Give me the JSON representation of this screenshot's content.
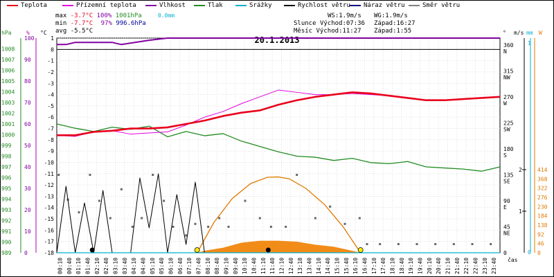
{
  "header": {
    "legend": [
      {
        "label": "Teplota",
        "color": "#e8001c"
      },
      {
        "label": "Přízemní teplota",
        "color": "#e000e0"
      },
      {
        "label": "Vlhkost",
        "color": "#8000a0"
      },
      {
        "label": "Tlak",
        "color": "#228b22"
      },
      {
        "label": "Srážky",
        "color": "#00b0d0"
      },
      {
        "label": "Rychlost větru",
        "color": "#000000"
      },
      {
        "label": "Náraz větru",
        "color": "#000080"
      },
      {
        "label": "Směr větru",
        "color": "#808080"
      }
    ],
    "stats": {
      "max_label": "max",
      "min_label": "min",
      "avg_label": "avg",
      "max_temp": "-3.7°C",
      "max_hum": "100%",
      "max_press": "1001hPa",
      "max_rain": "0.0mm",
      "min_temp": "-7.7°C",
      "min_hum": "97%",
      "min_press": "996.6hPa",
      "avg_temp": "-5.5°C",
      "ws": "WS:1.9m/s",
      "wg": "WG:1.9m/s",
      "sun_label": "Slunce",
      "sunrise": "Východ:07:36",
      "sunset": "Západ:16:27",
      "moon_label": "Měsíc",
      "moonrise": "Východ:11:27",
      "moonset": "Západ:1:55"
    }
  },
  "chart_data": {
    "type": "line",
    "title": "20.1.2013",
    "xlabel": "čas",
    "x_ticks": [
      "00:10",
      "00:40",
      "01:10",
      "01:40",
      "02:10",
      "02:40",
      "03:10",
      "03:40",
      "04:10",
      "04:40",
      "05:10",
      "05:40",
      "06:10",
      "06:40",
      "07:10",
      "07:40",
      "08:10",
      "08:40",
      "09:10",
      "09:40",
      "10:10",
      "10:40",
      "11:10",
      "11:40",
      "12:10",
      "12:40",
      "13:10",
      "13:40",
      "14:10",
      "14:40",
      "15:10",
      "15:40",
      "16:10",
      "16:40",
      "17:10",
      "17:40",
      "18:10",
      "18:40",
      "19:10",
      "19:40",
      "20:10",
      "20:40",
      "21:10",
      "21:40",
      "22:10",
      "22:40",
      "23:10",
      "23:40"
    ],
    "axes": {
      "pressure": {
        "unit": "hPa",
        "range": [
          989,
          1009
        ],
        "ticks": [
          989,
          990,
          991,
          992,
          993,
          994,
          995,
          996,
          997,
          998,
          999,
          1000,
          1001,
          1002,
          1003,
          1004,
          1005,
          1006,
          1007,
          1008
        ],
        "color": "#228b22"
      },
      "humidity": {
        "unit": "%",
        "range": [
          0,
          100
        ],
        "ticks": [
          0,
          10,
          20,
          30,
          40,
          50,
          60,
          70,
          80,
          90,
          100
        ],
        "color": "#8000a0"
      },
      "temperature": {
        "unit": "°C",
        "range": [
          -18,
          1
        ],
        "ticks": [
          1,
          0,
          -1,
          -2,
          -3,
          -4,
          -5,
          -6,
          -7,
          -8,
          -9,
          -10,
          -11,
          -12,
          -13,
          -14,
          -15,
          -16,
          -17,
          -18
        ]
      },
      "wind_dir": {
        "unit": "°",
        "ticks": [
          "360",
          "N",
          "315",
          "NW",
          "270",
          "W",
          "225",
          "SW",
          "180",
          "S",
          "135",
          "SE",
          "90",
          "E",
          "45",
          "NE",
          "0"
        ]
      },
      "wind_speed": {
        "unit": "m/s",
        "ticks": [
          1,
          2
        ],
        "color": "#000000"
      },
      "rain": {
        "unit": "mm",
        "ticks": [
          1,
          0
        ],
        "color": "#00b0d0"
      },
      "solar": {
        "unit": "W",
        "ticks": [
          414,
          368,
          322,
          276,
          230,
          184,
          138,
          92,
          46,
          0
        ],
        "color": "#e07800"
      }
    },
    "grid": true,
    "series": [
      {
        "name": "Teplota",
        "unit": "°C",
        "color": "#e8001c",
        "x": [
          0,
          1,
          2,
          3,
          4,
          5,
          6,
          7,
          8,
          9,
          10,
          11,
          12,
          13,
          14,
          15,
          16,
          17,
          18,
          19,
          20,
          21,
          22,
          23,
          24
        ],
        "values": [
          -7.6,
          -7.6,
          -7.3,
          -7.2,
          -7.0,
          -7.0,
          -6.9,
          -6.6,
          -6.3,
          -5.9,
          -5.6,
          -5.4,
          -4.9,
          -4.5,
          -4.2,
          -4.0,
          -3.8,
          -3.9,
          -4.1,
          -4.3,
          -4.5,
          -4.5,
          -4.4,
          -4.3,
          -4.2
        ]
      },
      {
        "name": "Přízemní teplota",
        "unit": "°C",
        "color": "#e000e0",
        "x": [
          0,
          1,
          2,
          3,
          4,
          5,
          6,
          7,
          8,
          9,
          10,
          11,
          12,
          13,
          14,
          15,
          16,
          17,
          18,
          19,
          20,
          21,
          22,
          23,
          24
        ],
        "values": [
          -7.6,
          -7.7,
          -7.3,
          -7.2,
          -7.5,
          -7.4,
          -7.3,
          -6.7,
          -6.0,
          -5.5,
          -4.8,
          -4.2,
          -3.6,
          -3.8,
          -4.0,
          -4.0,
          -3.9,
          -4.0,
          -4.1,
          -4.3,
          -4.5,
          -4.5,
          -4.4,
          -4.3,
          -4.2
        ]
      },
      {
        "name": "Vlhkost",
        "unit": "%",
        "color": "#8000a0",
        "x": [
          0,
          0.5,
          1.0,
          2.0,
          3.0,
          3.5,
          5.0,
          6.0,
          24
        ],
        "values": [
          97,
          97,
          98,
          98,
          98,
          97,
          99,
          100,
          100
        ]
      },
      {
        "name": "Tlak",
        "unit": "hPa",
        "color": "#228b22",
        "x": [
          0,
          1,
          2,
          3,
          4,
          5,
          6,
          7,
          8,
          9,
          10,
          11,
          12,
          13,
          14,
          15,
          16,
          17,
          18,
          19,
          20,
          21,
          22,
          23,
          24
        ],
        "values": [
          1001.0,
          1000.6,
          1000.3,
          1000.7,
          1000.5,
          1000.8,
          999.8,
          1000.3,
          999.9,
          1000.1,
          999.4,
          998.9,
          998.4,
          998.0,
          997.9,
          997.6,
          997.8,
          997.4,
          997.3,
          997.5,
          997.0,
          996.9,
          996.8,
          996.6,
          997.0
        ]
      },
      {
        "name": "Rychlost větru",
        "unit": "m/s",
        "color": "#000000",
        "x": [
          0,
          0.5,
          1.0,
          1.5,
          2.0,
          2.5,
          3.0,
          3.5,
          4.0,
          4.5,
          5.0,
          5.5,
          6.0,
          6.5,
          7.0,
          7.5,
          8.0,
          8.5,
          9.0,
          9.5,
          10,
          24
        ],
        "values": [
          0,
          1.6,
          0,
          1.2,
          0,
          1.5,
          0,
          0,
          0,
          1.8,
          0.6,
          1.9,
          0,
          1.4,
          0.2,
          1.7,
          0,
          0,
          0,
          0,
          0,
          0
        ]
      },
      {
        "name": "Srážky",
        "unit": "mm",
        "color": "#00b0d0",
        "x": [
          0,
          24
        ],
        "values": [
          0,
          0
        ]
      }
    ],
    "wind_direction": {
      "unit": "°",
      "x": [
        0.1,
        0.6,
        1.2,
        1.8,
        2.3,
        2.9,
        3.5,
        4.1,
        4.6,
        5.2,
        5.8,
        6.3,
        7.0,
        7.5,
        8.2,
        8.8,
        9.3,
        10.2,
        11.0,
        11.6,
        12.4,
        13.0,
        14.0,
        14.8,
        15.6,
        16.4,
        16.8,
        17.5,
        18.5,
        19.5,
        20.5,
        21.5,
        22.5,
        23.5
      ],
      "values": [
        135,
        92,
        70,
        135,
        90,
        60,
        110,
        45,
        60,
        135,
        90,
        45,
        30,
        50,
        45,
        60,
        45,
        90,
        60,
        45,
        45,
        135,
        60,
        80,
        50,
        60,
        15,
        15,
        15,
        15,
        15,
        15,
        15,
        15
      ]
    },
    "solar_radiation": {
      "unit": "W",
      "x": [
        7.6,
        8.0,
        9.0,
        10.0,
        11.0,
        12.0,
        13.0,
        14.0,
        15.0,
        16.0,
        16.45
      ],
      "values": [
        0,
        10,
        25,
        50,
        60,
        60,
        55,
        40,
        30,
        10,
        0
      ]
    },
    "sun_elevation_curve": {
      "unit": "W",
      "x": [
        7.6,
        8.5,
        9.5,
        10.5,
        11.4,
        12.0,
        12.6,
        13.5,
        14.5,
        15.5,
        16.45
      ],
      "values": [
        0,
        150,
        270,
        345,
        376,
        378,
        368,
        320,
        240,
        130,
        0
      ]
    },
    "markers": {
      "sunrise": 7.6,
      "sunset": 16.45,
      "moonrise": 11.45,
      "moonset": 1.92
    }
  }
}
